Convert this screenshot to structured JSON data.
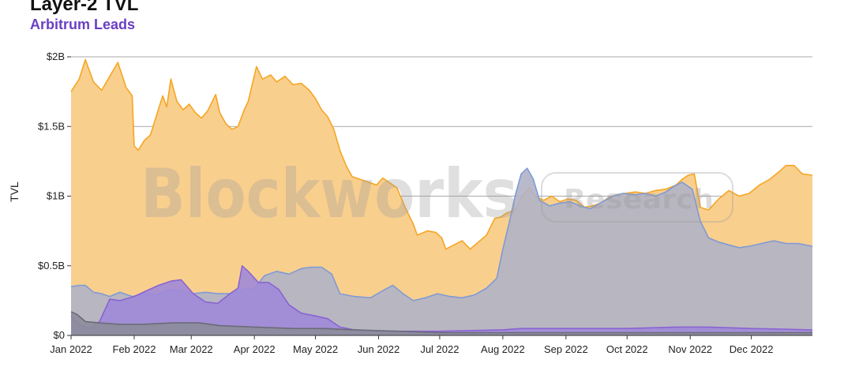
{
  "chart_data": {
    "type": "area",
    "title": "Layer-2 TVL",
    "subtitle": "Arbitrum Leads",
    "ylabel": "TVL",
    "xlabel": "",
    "ylim": [
      0,
      2.0
    ],
    "y_ticks": [
      0,
      0.5,
      1,
      1.5,
      2
    ],
    "y_tick_labels": [
      "$0",
      "$0.5B",
      "$1B",
      "$1.5B",
      "$2B"
    ],
    "x_range": [
      "2022-01-01",
      "2022-12-31"
    ],
    "x_ticks": [
      "2022-01-01",
      "2022-02-01",
      "2022-03-01",
      "2022-04-01",
      "2022-05-01",
      "2022-06-01",
      "2022-07-01",
      "2022-08-01",
      "2022-09-01",
      "2022-10-01",
      "2022-11-01",
      "2022-12-01"
    ],
    "x_tick_labels": [
      "Jan 2022",
      "Feb 2022",
      "Mar 2022",
      "Apr 2022",
      "May 2022",
      "Jun 2022",
      "Jul 2022",
      "Aug 2022",
      "Sep 2022",
      "Oct 2022",
      "Nov 2022",
      "Dec 2022"
    ],
    "grid": true,
    "legend": "none",
    "series": [
      {
        "color": "#f5a623",
        "fill": "#f9cf8e",
        "points": [
          [
            "2022-01-01",
            1.75
          ],
          [
            "2022-01-05",
            1.84
          ],
          [
            "2022-01-08",
            1.98
          ],
          [
            "2022-01-12",
            1.82
          ],
          [
            "2022-01-16",
            1.76
          ],
          [
            "2022-01-20",
            1.86
          ],
          [
            "2022-01-24",
            1.96
          ],
          [
            "2022-01-28",
            1.78
          ],
          [
            "2022-01-31",
            1.72
          ],
          [
            "2022-02-01",
            1.36
          ],
          [
            "2022-02-03",
            1.33
          ],
          [
            "2022-02-06",
            1.4
          ],
          [
            "2022-02-09",
            1.44
          ],
          [
            "2022-02-12",
            1.58
          ],
          [
            "2022-02-15",
            1.72
          ],
          [
            "2022-02-17",
            1.64
          ],
          [
            "2022-02-19",
            1.84
          ],
          [
            "2022-02-22",
            1.68
          ],
          [
            "2022-02-25",
            1.62
          ],
          [
            "2022-02-28",
            1.66
          ],
          [
            "2022-03-03",
            1.6
          ],
          [
            "2022-03-06",
            1.56
          ],
          [
            "2022-03-09",
            1.61
          ],
          [
            "2022-03-13",
            1.73
          ],
          [
            "2022-03-15",
            1.6
          ],
          [
            "2022-03-18",
            1.52
          ],
          [
            "2022-03-21",
            1.48
          ],
          [
            "2022-03-24",
            1.5
          ],
          [
            "2022-03-27",
            1.62
          ],
          [
            "2022-03-29",
            1.68
          ],
          [
            "2022-04-02",
            1.93
          ],
          [
            "2022-04-05",
            1.84
          ],
          [
            "2022-04-09",
            1.87
          ],
          [
            "2022-04-12",
            1.82
          ],
          [
            "2022-04-16",
            1.86
          ],
          [
            "2022-04-20",
            1.8
          ],
          [
            "2022-04-24",
            1.81
          ],
          [
            "2022-04-28",
            1.76
          ],
          [
            "2022-05-01",
            1.7
          ],
          [
            "2022-05-04",
            1.62
          ],
          [
            "2022-05-07",
            1.57
          ],
          [
            "2022-05-10",
            1.48
          ],
          [
            "2022-05-13",
            1.33
          ],
          [
            "2022-05-16",
            1.22
          ],
          [
            "2022-05-19",
            1.14
          ],
          [
            "2022-05-23",
            1.12
          ],
          [
            "2022-05-27",
            1.1
          ],
          [
            "2022-05-31",
            1.08
          ],
          [
            "2022-06-03",
            1.13
          ],
          [
            "2022-06-06",
            1.1
          ],
          [
            "2022-06-10",
            1.06
          ],
          [
            "2022-06-14",
            0.92
          ],
          [
            "2022-06-18",
            0.8
          ],
          [
            "2022-06-20",
            0.72
          ],
          [
            "2022-06-25",
            0.75
          ],
          [
            "2022-06-29",
            0.74
          ],
          [
            "2022-07-02",
            0.7
          ],
          [
            "2022-07-04",
            0.62
          ],
          [
            "2022-07-08",
            0.65
          ],
          [
            "2022-07-12",
            0.68
          ],
          [
            "2022-07-16",
            0.62
          ],
          [
            "2022-07-20",
            0.67
          ],
          [
            "2022-07-24",
            0.72
          ],
          [
            "2022-07-28",
            0.84
          ],
          [
            "2022-07-31",
            0.85
          ],
          [
            "2022-08-03",
            0.88
          ],
          [
            "2022-08-07",
            0.9
          ],
          [
            "2022-08-10",
            0.99
          ],
          [
            "2022-08-14",
            1.06
          ],
          [
            "2022-08-17",
            1.0
          ],
          [
            "2022-08-21",
            0.97
          ],
          [
            "2022-08-25",
            1.0
          ],
          [
            "2022-08-29",
            0.96
          ],
          [
            "2022-09-02",
            0.98
          ],
          [
            "2022-09-06",
            0.97
          ],
          [
            "2022-09-10",
            0.92
          ],
          [
            "2022-09-14",
            0.93
          ],
          [
            "2022-09-18",
            0.95
          ],
          [
            "2022-09-22",
            0.99
          ],
          [
            "2022-09-26",
            1.01
          ],
          [
            "2022-09-30",
            1.02
          ],
          [
            "2022-10-05",
            1.03
          ],
          [
            "2022-10-10",
            1.02
          ],
          [
            "2022-10-15",
            1.04
          ],
          [
            "2022-10-20",
            1.05
          ],
          [
            "2022-10-25",
            1.08
          ],
          [
            "2022-10-28",
            1.12
          ],
          [
            "2022-10-31",
            1.15
          ],
          [
            "2022-11-03",
            1.16
          ],
          [
            "2022-11-06",
            0.92
          ],
          [
            "2022-11-10",
            0.9
          ],
          [
            "2022-11-15",
            0.98
          ],
          [
            "2022-11-20",
            1.04
          ],
          [
            "2022-11-25",
            1.0
          ],
          [
            "2022-11-30",
            1.02
          ],
          [
            "2022-12-05",
            1.08
          ],
          [
            "2022-12-10",
            1.12
          ],
          [
            "2022-12-15",
            1.18
          ],
          [
            "2022-12-18",
            1.22
          ],
          [
            "2022-12-22",
            1.22
          ],
          [
            "2022-12-26",
            1.16
          ],
          [
            "2022-12-31",
            1.15
          ]
        ]
      },
      {
        "color": "#7f9ad6",
        "fill": "#b0b3c6",
        "points": [
          [
            "2022-01-01",
            0.35
          ],
          [
            "2022-01-05",
            0.36
          ],
          [
            "2022-01-08",
            0.36
          ],
          [
            "2022-01-12",
            0.31
          ],
          [
            "2022-01-16",
            0.3
          ],
          [
            "2022-01-20",
            0.28
          ],
          [
            "2022-01-25",
            0.31
          ],
          [
            "2022-01-31",
            0.28
          ],
          [
            "2022-02-06",
            0.3
          ],
          [
            "2022-02-12",
            0.29
          ],
          [
            "2022-02-18",
            0.33
          ],
          [
            "2022-02-24",
            0.32
          ],
          [
            "2022-03-02",
            0.3
          ],
          [
            "2022-03-08",
            0.31
          ],
          [
            "2022-03-14",
            0.3
          ],
          [
            "2022-03-20",
            0.3
          ],
          [
            "2022-03-26",
            0.33
          ],
          [
            "2022-04-01",
            0.34
          ],
          [
            "2022-04-06",
            0.43
          ],
          [
            "2022-04-12",
            0.46
          ],
          [
            "2022-04-18",
            0.44
          ],
          [
            "2022-04-24",
            0.48
          ],
          [
            "2022-04-29",
            0.49
          ],
          [
            "2022-05-04",
            0.49
          ],
          [
            "2022-05-09",
            0.44
          ],
          [
            "2022-05-13",
            0.3
          ],
          [
            "2022-05-20",
            0.28
          ],
          [
            "2022-05-28",
            0.27
          ],
          [
            "2022-06-04",
            0.33
          ],
          [
            "2022-06-08",
            0.36
          ],
          [
            "2022-06-13",
            0.3
          ],
          [
            "2022-06-18",
            0.25
          ],
          [
            "2022-06-24",
            0.27
          ],
          [
            "2022-06-30",
            0.3
          ],
          [
            "2022-07-06",
            0.28
          ],
          [
            "2022-07-12",
            0.27
          ],
          [
            "2022-07-18",
            0.29
          ],
          [
            "2022-07-24",
            0.34
          ],
          [
            "2022-07-29",
            0.41
          ],
          [
            "2022-08-01",
            0.62
          ],
          [
            "2022-08-04",
            0.8
          ],
          [
            "2022-08-07",
            1.0
          ],
          [
            "2022-08-10",
            1.16
          ],
          [
            "2022-08-13",
            1.2
          ],
          [
            "2022-08-16",
            1.12
          ],
          [
            "2022-08-19",
            0.97
          ],
          [
            "2022-08-24",
            0.93
          ],
          [
            "2022-08-29",
            0.95
          ],
          [
            "2022-09-03",
            0.96
          ],
          [
            "2022-09-08",
            0.93
          ],
          [
            "2022-09-13",
            0.91
          ],
          [
            "2022-09-19",
            0.96
          ],
          [
            "2022-09-24",
            1.0
          ],
          [
            "2022-09-29",
            1.02
          ],
          [
            "2022-10-05",
            1.01
          ],
          [
            "2022-10-10",
            1.02
          ],
          [
            "2022-10-15",
            1.0
          ],
          [
            "2022-10-20",
            1.03
          ],
          [
            "2022-10-24",
            1.07
          ],
          [
            "2022-10-28",
            1.1
          ],
          [
            "2022-11-02",
            1.05
          ],
          [
            "2022-11-06",
            0.82
          ],
          [
            "2022-11-10",
            0.7
          ],
          [
            "2022-11-15",
            0.67
          ],
          [
            "2022-11-20",
            0.65
          ],
          [
            "2022-11-25",
            0.63
          ],
          [
            "2022-11-30",
            0.64
          ],
          [
            "2022-12-06",
            0.66
          ],
          [
            "2022-12-12",
            0.68
          ],
          [
            "2022-12-18",
            0.66
          ],
          [
            "2022-12-24",
            0.66
          ],
          [
            "2022-12-31",
            0.64
          ]
        ]
      },
      {
        "color": "#8a63d2",
        "fill": "#a08ad8",
        "points": [
          [
            "2022-01-01",
            0.14
          ],
          [
            "2022-01-05",
            0.08
          ],
          [
            "2022-01-10",
            0.05
          ],
          [
            "2022-01-15",
            0.1
          ],
          [
            "2022-01-20",
            0.26
          ],
          [
            "2022-01-25",
            0.25
          ],
          [
            "2022-02-01",
            0.28
          ],
          [
            "2022-02-07",
            0.32
          ],
          [
            "2022-02-13",
            0.36
          ],
          [
            "2022-02-19",
            0.39
          ],
          [
            "2022-02-24",
            0.4
          ],
          [
            "2022-03-02",
            0.3
          ],
          [
            "2022-03-08",
            0.24
          ],
          [
            "2022-03-14",
            0.23
          ],
          [
            "2022-03-20",
            0.3
          ],
          [
            "2022-03-24",
            0.34
          ],
          [
            "2022-03-26",
            0.5
          ],
          [
            "2022-03-29",
            0.46
          ],
          [
            "2022-04-03",
            0.38
          ],
          [
            "2022-04-08",
            0.38
          ],
          [
            "2022-04-13",
            0.33
          ],
          [
            "2022-04-18",
            0.22
          ],
          [
            "2022-04-24",
            0.16
          ],
          [
            "2022-05-01",
            0.14
          ],
          [
            "2022-05-07",
            0.12
          ],
          [
            "2022-05-13",
            0.06
          ],
          [
            "2022-05-20",
            0.04
          ],
          [
            "2022-06-01",
            0.03
          ],
          [
            "2022-07-01",
            0.03
          ],
          [
            "2022-08-01",
            0.04
          ],
          [
            "2022-08-10",
            0.05
          ],
          [
            "2022-09-01",
            0.05
          ],
          [
            "2022-10-01",
            0.05
          ],
          [
            "2022-10-25",
            0.06
          ],
          [
            "2022-11-10",
            0.06
          ],
          [
            "2022-12-01",
            0.05
          ],
          [
            "2022-12-31",
            0.04
          ]
        ]
      },
      {
        "color": "#6b6b78",
        "fill": "#8c8c9a",
        "points": [
          [
            "2022-01-01",
            0.17
          ],
          [
            "2022-01-04",
            0.15
          ],
          [
            "2022-01-08",
            0.1
          ],
          [
            "2022-01-15",
            0.09
          ],
          [
            "2022-01-25",
            0.08
          ],
          [
            "2022-02-05",
            0.08
          ],
          [
            "2022-02-20",
            0.09
          ],
          [
            "2022-03-05",
            0.09
          ],
          [
            "2022-03-15",
            0.07
          ],
          [
            "2022-04-01",
            0.06
          ],
          [
            "2022-04-20",
            0.05
          ],
          [
            "2022-05-05",
            0.05
          ],
          [
            "2022-05-20",
            0.04
          ],
          [
            "2022-06-10",
            0.03
          ],
          [
            "2022-07-01",
            0.02
          ],
          [
            "2022-08-01",
            0.02
          ],
          [
            "2022-09-01",
            0.02
          ],
          [
            "2022-10-01",
            0.02
          ],
          [
            "2022-11-01",
            0.02
          ],
          [
            "2022-12-01",
            0.02
          ],
          [
            "2022-12-31",
            0.02
          ]
        ]
      }
    ]
  },
  "watermark": {
    "brand": "Blockworks",
    "tag": "Research"
  }
}
